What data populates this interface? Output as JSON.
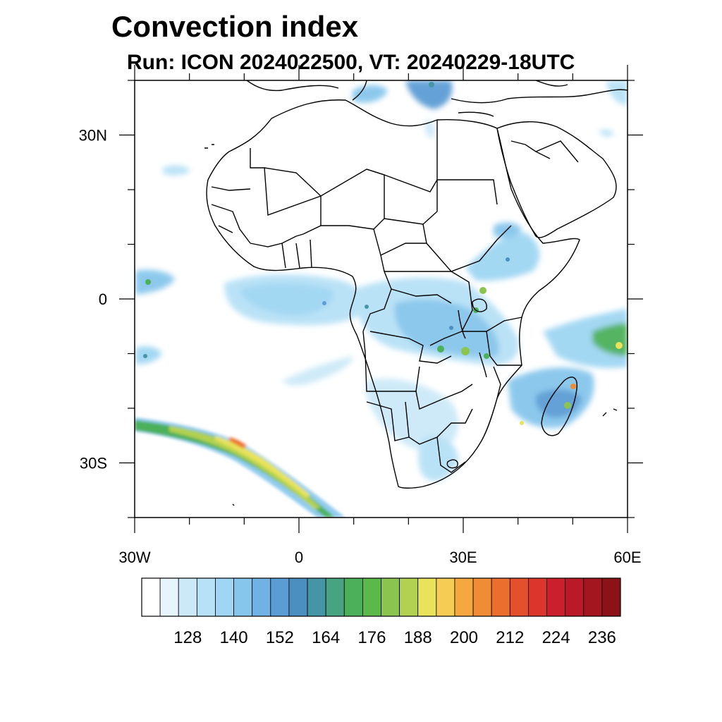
{
  "title": "Convection index",
  "subtitle": "Run: ICON 2024022500,  VT: 20240229-18UTC",
  "map": {
    "lon_range": [
      -30,
      60
    ],
    "lat_range": [
      -40,
      40
    ],
    "lon_ticks": [
      {
        "value": -30,
        "label": "30W"
      },
      {
        "value": 0,
        "label": "0"
      },
      {
        "value": 30,
        "label": "30E"
      },
      {
        "value": 60,
        "label": "60E"
      }
    ],
    "lat_ticks": [
      {
        "value": 30,
        "label": "30N"
      },
      {
        "value": 0,
        "label": "0"
      },
      {
        "value": -30,
        "label": "30S"
      }
    ],
    "minor_lon_step": 10,
    "minor_lat_step": 10
  },
  "colorbar": {
    "colors": [
      "#ffffff",
      "#e6f4fc",
      "#cce9f8",
      "#b7e1f6",
      "#9fd6f3",
      "#86c6ec",
      "#72b2e2",
      "#5c9cd4",
      "#4b8ec0",
      "#4595a4",
      "#48a382",
      "#4cb05a",
      "#5bb94a",
      "#8bc44e",
      "#b3d150",
      "#e8e35a",
      "#f7cc55",
      "#f5a840",
      "#f08c35",
      "#ec6e2e",
      "#e4502b",
      "#dc352b",
      "#cc1f2d",
      "#b81a28",
      "#a31620",
      "#8a1318"
    ],
    "labels": [
      "128",
      "140",
      "152",
      "164",
      "176",
      "188",
      "200",
      "212",
      "224",
      "236"
    ]
  }
}
